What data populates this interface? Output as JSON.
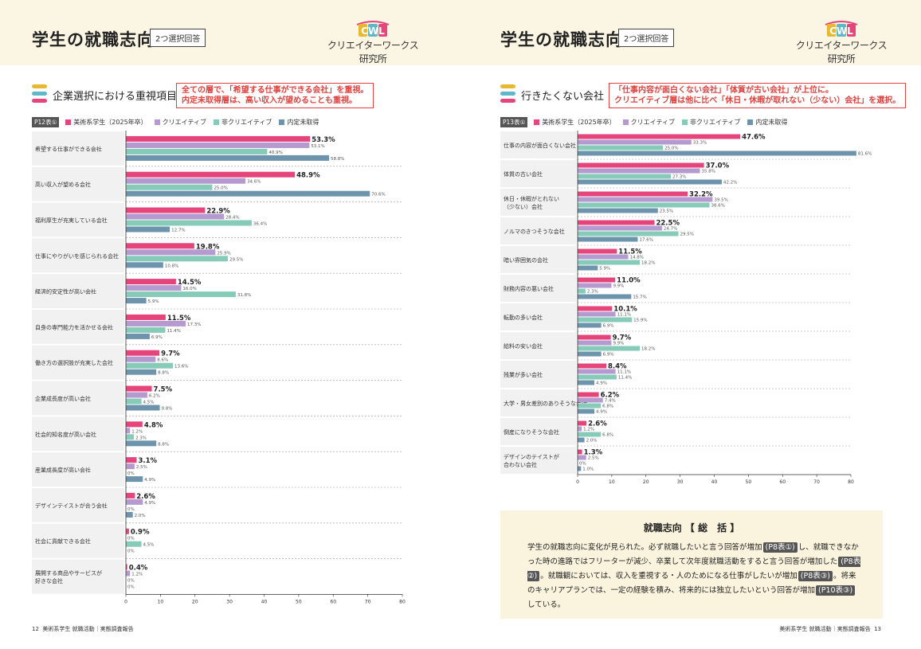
{
  "series": [
    {
      "name": "美術系学生（2025年卒）",
      "color": "#e5457a"
    },
    {
      "name": "クリエイティブ",
      "color": "#b59ad0"
    },
    {
      "name": "非クリエイティブ",
      "color": "#86cbb8"
    },
    {
      "name": "内定未取得",
      "color": "#6d93ad"
    }
  ],
  "left_page": {
    "header": {
      "title": "学生の就職志向",
      "badge": "2つ選択回答",
      "logo_mark": "CWL",
      "logo_text": "クリエイターワークス研究所"
    },
    "section_title": "企業選択における重視項目",
    "note_lines": [
      "全ての層で、「希望する仕事ができる会社」を重視。",
      "内定未取得層は、高い収入が望めることも重視。"
    ],
    "table_tag": "P12表①",
    "footer": {
      "page": "12",
      "text": "美術系学生 就職活動｜実態調査報告"
    }
  },
  "right_page": {
    "header": {
      "title": "学生の就職志向",
      "badge": "2つ選択回答",
      "logo_mark": "CWL",
      "logo_text": "クリエイターワークス研究所"
    },
    "section_title": "行きたくない会社",
    "note_lines": [
      "「仕事内容が面白くない会社」「体質が古い会社」が上位に。",
      "クリエイティブ層は他に比べ「休日・休暇が取れない（少ない）会社」を選択。"
    ],
    "table_tag": "P13表①",
    "footer": {
      "page": "13",
      "text": "美術系学生 就職活動｜実態調査報告"
    },
    "summary": {
      "title": "就職志向 【 総　括 】",
      "p1": "学生の就職志向に変化が見られた。必ず就職したいと言う回答が増加",
      "ref1": "(P8表①)",
      "p2": "し、就職できなかった時の進路ではフリーターが減少、卒業して次年度就職活動をすると言う回答が増加した",
      "ref2": "(P8表②)",
      "p3": "。就職観においては、収入を重視する・人のためになる仕事がしたいが増加",
      "ref3": "(P8表③)",
      "p4": "。将来のキャリアプランでは、一定の経験を積み、将来的には独立したいという回答が増加",
      "ref4": "(P10表③)",
      "p5": "している。"
    }
  },
  "chart_data": [
    {
      "type": "bar",
      "orientation": "horizontal",
      "title": "企業選択における重視項目",
      "categories": [
        "希望する仕事ができる会社",
        "高い収入が望める会社",
        "福利厚生が充実している会社",
        "仕事にやりがいを感じられる会社",
        "経済的安定性が高い会社",
        "自身の専門能力を活かせる会社",
        "働き方の選択肢が充実した会社",
        "企業成長度が高い会社",
        "社会的知名度が高い会社",
        "産業成長度が高い会社",
        "デザインテイストが合う会社",
        "社会に貢献できる会社",
        [
          "展開する商品やサービスが",
          "好きな会社"
        ]
      ],
      "series": [
        {
          "name": "美術系学生（2025年卒）",
          "values": [
            53.3,
            48.9,
            22.9,
            19.8,
            14.5,
            11.5,
            9.7,
            7.5,
            4.8,
            3.1,
            2.6,
            0.9,
            0.4
          ]
        },
        {
          "name": "クリエイティブ",
          "values": [
            53.1,
            34.6,
            28.4,
            25.9,
            16.0,
            17.3,
            8.6,
            6.2,
            1.2,
            2.5,
            4.9,
            0,
            1.2
          ]
        },
        {
          "name": "非クリエイティブ",
          "values": [
            40.9,
            25.0,
            36.4,
            29.5,
            31.8,
            11.4,
            13.6,
            4.5,
            2.3,
            0,
            0,
            4.5,
            0
          ]
        },
        {
          "name": "内定未取得",
          "values": [
            58.8,
            70.6,
            12.7,
            10.8,
            5.9,
            6.9,
            8.8,
            9.8,
            8.8,
            4.9,
            2.0,
            0,
            0
          ]
        }
      ],
      "xlim": [
        0,
        80
      ],
      "xticks": [
        0,
        10,
        20,
        30,
        40,
        50,
        60,
        70,
        80
      ],
      "unit": "%"
    },
    {
      "type": "bar",
      "orientation": "horizontal",
      "title": "行きたくない会社",
      "categories": [
        "仕事の内容が面白くない会社",
        "体質の古い会社",
        [
          "休日・休暇がとれない",
          "（少ない）会社"
        ],
        "ノルマのきつそうな会社",
        "暗い雰囲気の会社",
        "財務内容の悪い会社",
        "転勤の多い会社",
        "給料の安い会社",
        "残業が多い会社",
        "大学・男女差別のありそうな会社",
        "倒産になりそうな会社",
        [
          "デザインのテイストが",
          "合わない会社"
        ]
      ],
      "series": [
        {
          "name": "美術系学生（2025年卒）",
          "values": [
            47.6,
            37.0,
            32.2,
            22.5,
            11.5,
            11.0,
            10.1,
            9.7,
            8.4,
            6.2,
            2.6,
            1.3
          ]
        },
        {
          "name": "クリエイティブ",
          "values": [
            33.3,
            35.8,
            39.5,
            24.7,
            14.8,
            9.9,
            11.1,
            9.9,
            11.1,
            7.4,
            1.2,
            2.5
          ]
        },
        {
          "name": "非クリエイティブ",
          "values": [
            25.0,
            27.3,
            38.6,
            29.5,
            18.2,
            2.3,
            15.9,
            18.2,
            11.4,
            6.8,
            6.8,
            0
          ]
        },
        {
          "name": "内定未取得",
          "values": [
            81.6,
            42.2,
            23.5,
            17.6,
            5.9,
            15.7,
            6.9,
            6.9,
            4.9,
            4.9,
            2.0,
            1.0
          ]
        }
      ],
      "xlim": [
        0,
        80
      ],
      "xticks": [
        0,
        10,
        20,
        30,
        40,
        50,
        60,
        70,
        80
      ],
      "unit": "%"
    }
  ]
}
